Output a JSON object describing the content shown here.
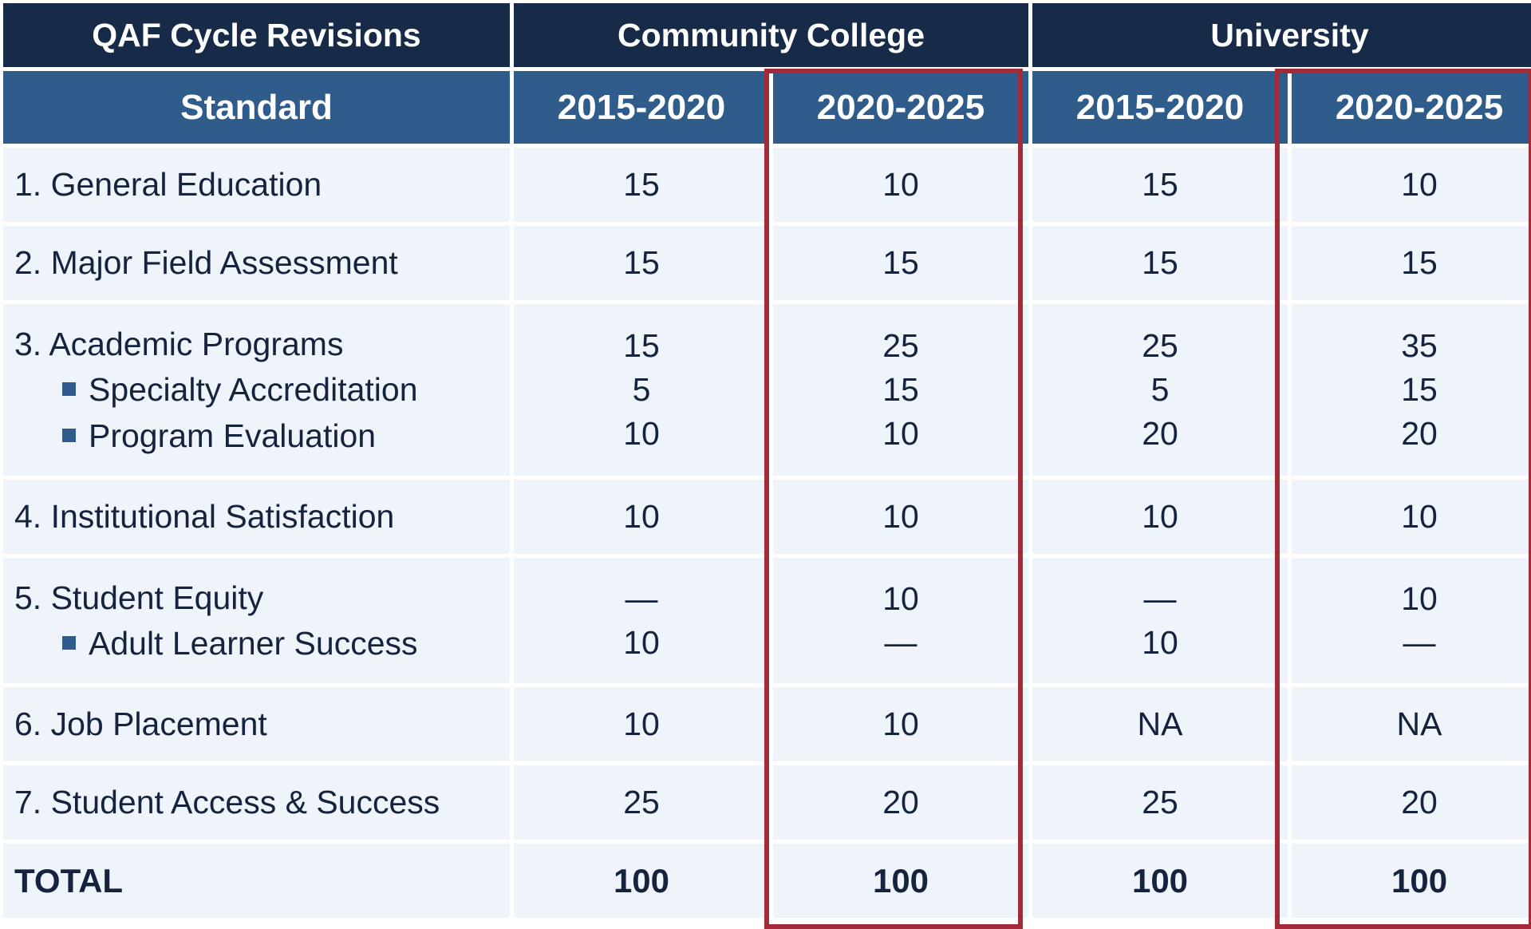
{
  "table": {
    "title": "QAF Cycle Revisions",
    "groups": [
      "Community College",
      "University"
    ],
    "standard_header": "Standard",
    "periods": [
      "2015-2020",
      "2020-2025",
      "2015-2020",
      "2020-2025"
    ],
    "rows": [
      {
        "label": "1. General Education",
        "values": [
          "15",
          "10",
          "15",
          "10"
        ]
      },
      {
        "label": "2. Major Field Assessment",
        "values": [
          "15",
          "15",
          "15",
          "15"
        ]
      },
      {
        "label": "3. Academic Programs",
        "values": [
          "15",
          "25",
          "25",
          "35"
        ],
        "subs": [
          {
            "label": "Specialty Accreditation",
            "values": [
              "5",
              "15",
              "5",
              "15"
            ]
          },
          {
            "label": "Program Evaluation",
            "values": [
              "10",
              "10",
              "20",
              "20"
            ]
          }
        ]
      },
      {
        "label": "4. Institutional Satisfaction",
        "values": [
          "10",
          "10",
          "10",
          "10"
        ]
      },
      {
        "label": "5. Student Equity",
        "values": [
          "—",
          "10",
          "—",
          "10"
        ],
        "subs": [
          {
            "label": "Adult Learner Success",
            "values": [
              "10",
              "—",
              "10",
              "—"
            ]
          }
        ]
      },
      {
        "label": "6. Job Placement",
        "values": [
          "10",
          "10",
          "NA",
          "NA"
        ]
      },
      {
        "label": "7. Student Access & Success",
        "values": [
          "25",
          "20",
          "25",
          "20"
        ]
      }
    ],
    "total": {
      "label": "TOTAL",
      "values": [
        "100",
        "100",
        "100",
        "100"
      ]
    },
    "highlight_color": "#a22b3a"
  }
}
